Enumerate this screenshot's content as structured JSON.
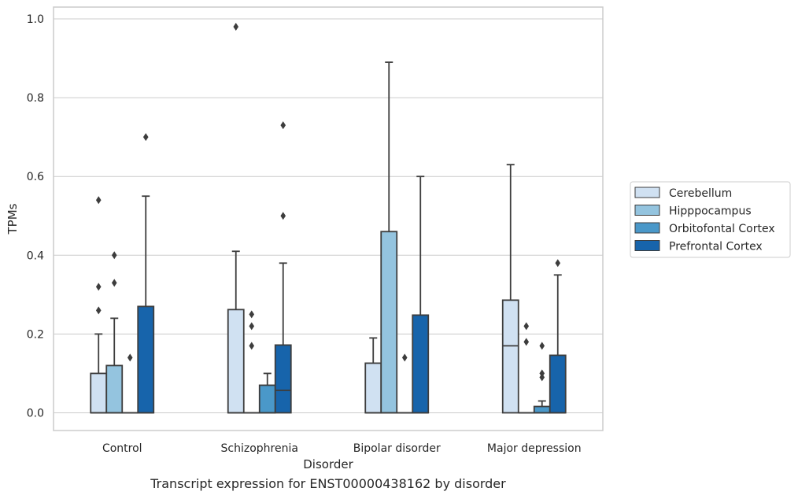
{
  "chart_data": {
    "type": "boxplot",
    "title": "",
    "caption": "Transcript expression for ENST00000438162 by disorder",
    "xlabel": "Disorder",
    "ylabel": "TPMs",
    "ylim": [
      -0.045,
      1.03
    ],
    "yticks": [
      0.0,
      0.2,
      0.4,
      0.6,
      0.8,
      1.0
    ],
    "ytick_labels": [
      "0.0",
      "0.2",
      "0.4",
      "0.6",
      "0.8",
      "1.0"
    ],
    "grid": "horizontal",
    "legend_position": "right",
    "categories": [
      "Control",
      "Schizophrenia",
      "Bipolar disorder",
      "Major depression"
    ],
    "series": [
      {
        "name": "Cerebellum",
        "color": "#d0e1f2",
        "boxes": [
          {
            "q1": 0.0,
            "median": 0.0,
            "q3": 0.1,
            "whislo": 0.0,
            "whishi": 0.2,
            "fliers": [
              0.26,
              0.32,
              0.54
            ]
          },
          {
            "q1": 0.0,
            "median": 0.0,
            "q3": 0.262,
            "whislo": 0.0,
            "whishi": 0.41,
            "fliers": [
              0.98
            ]
          },
          {
            "q1": 0.0,
            "median": 0.0,
            "q3": 0.126,
            "whislo": 0.0,
            "whishi": 0.19,
            "fliers": []
          },
          {
            "q1": 0.0,
            "median": 0.17,
            "q3": 0.286,
            "whislo": 0.0,
            "whishi": 0.63,
            "fliers": []
          }
        ]
      },
      {
        "name": "Hipppocampus",
        "color": "#94c4df",
        "boxes": [
          {
            "q1": 0.0,
            "median": 0.0,
            "q3": 0.12,
            "whislo": 0.0,
            "whishi": 0.24,
            "fliers": [
              0.33,
              0.4
            ]
          },
          {
            "q1": 0.0,
            "median": 0.0,
            "q3": 0.0,
            "whislo": 0.0,
            "whishi": 0.0,
            "fliers": [
              0.17,
              0.22,
              0.25
            ]
          },
          {
            "q1": 0.0,
            "median": 0.0,
            "q3": 0.46,
            "whislo": 0.0,
            "whishi": 0.89,
            "fliers": []
          },
          {
            "q1": 0.0,
            "median": 0.0,
            "q3": 0.0,
            "whislo": 0.0,
            "whishi": 0.0,
            "fliers": [
              0.18,
              0.22
            ]
          }
        ]
      },
      {
        "name": "Orbitofontal Cortex",
        "color": "#4a98c9",
        "boxes": [
          {
            "q1": 0.0,
            "median": 0.0,
            "q3": 0.0,
            "whislo": 0.0,
            "whishi": 0.0,
            "fliers": [
              0.14
            ]
          },
          {
            "q1": 0.0,
            "median": 0.0,
            "q3": 0.07,
            "whislo": 0.0,
            "whishi": 0.1,
            "fliers": []
          },
          {
            "q1": 0.0,
            "median": 0.0,
            "q3": 0.0,
            "whislo": 0.0,
            "whishi": 0.0,
            "fliers": [
              0.14
            ]
          },
          {
            "q1": 0.0,
            "median": 0.0,
            "q3": 0.016,
            "whislo": 0.0,
            "whishi": 0.03,
            "fliers": [
              0.09,
              0.1,
              0.17
            ]
          }
        ]
      },
      {
        "name": "Prefrontal Cortex",
        "color": "#1764ab",
        "boxes": [
          {
            "q1": 0.0,
            "median": 0.0,
            "q3": 0.27,
            "whislo": 0.0,
            "whishi": 0.55,
            "fliers": [
              0.7
            ]
          },
          {
            "q1": 0.0,
            "median": 0.057,
            "q3": 0.172,
            "whislo": 0.0,
            "whishi": 0.38,
            "fliers": [
              0.5,
              0.73
            ]
          },
          {
            "q1": 0.0,
            "median": 0.0,
            "q3": 0.248,
            "whislo": 0.0,
            "whishi": 0.6,
            "fliers": []
          },
          {
            "q1": 0.0,
            "median": 0.0,
            "q3": 0.146,
            "whislo": 0.0,
            "whishi": 0.35,
            "fliers": [
              0.38
            ]
          }
        ]
      }
    ]
  }
}
